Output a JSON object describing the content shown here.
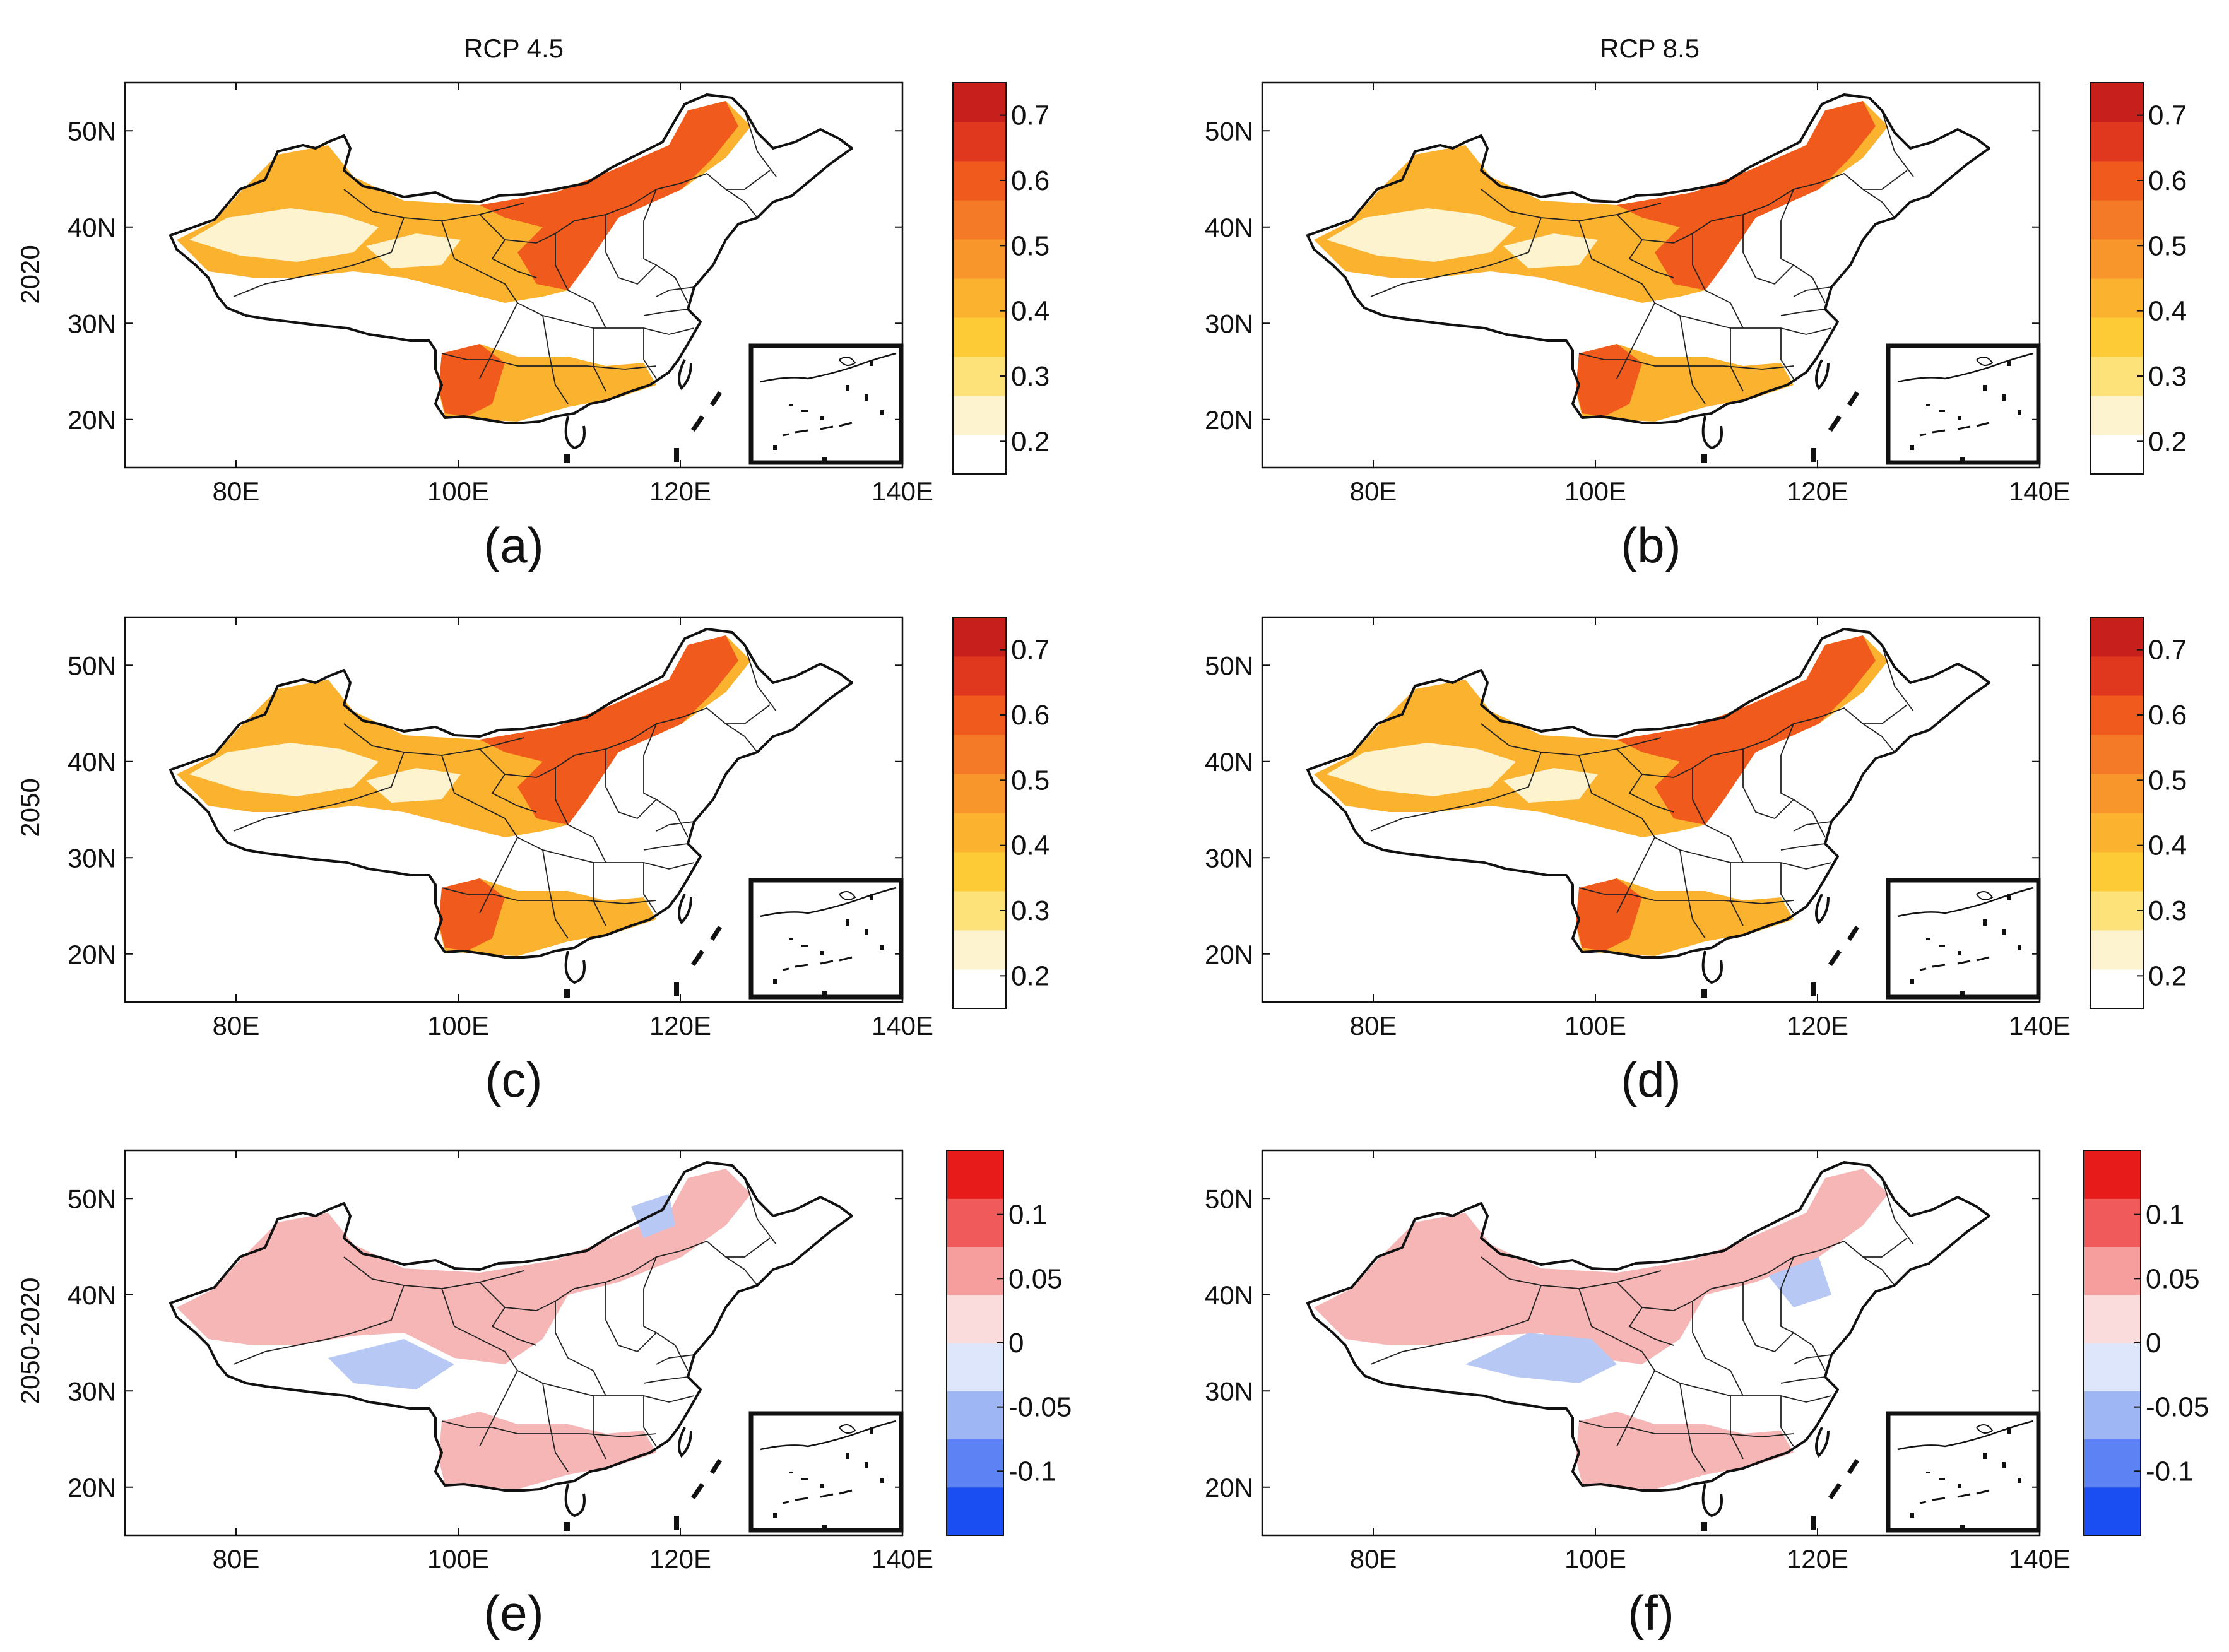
{
  "column_titles": [
    "RCP 4.5",
    "RCP 8.5"
  ],
  "row_labels": [
    "2020",
    "2050",
    "2050-2020"
  ],
  "panel_labels": [
    "(a)",
    "(b)",
    "(c)",
    "(d)",
    "(e)",
    "(f)"
  ],
  "axes": {
    "x_ticks": [
      "80E",
      "100E",
      "120E",
      "140E"
    ],
    "y_ticks": [
      "50N",
      "40N",
      "30N",
      "20N"
    ],
    "lon_range": [
      70,
      140
    ],
    "lat_range": [
      15,
      55
    ]
  },
  "colorbar_value": {
    "tick_labels": [
      "0.7",
      "0.6",
      "0.5",
      "0.4",
      "0.3",
      "0.2"
    ],
    "range": [
      0.15,
      0.75
    ],
    "colors": [
      "#ffffff",
      "#fdf3cf",
      "#fde27a",
      "#fccb35",
      "#fbb22f",
      "#f8962b",
      "#f47a27",
      "#f05a1c",
      "#e0381f",
      "#c71f1c"
    ]
  },
  "colorbar_diff": {
    "tick_labels": [
      "0.1",
      "0.05",
      "0",
      "-0.05",
      "-0.1"
    ],
    "range": [
      -0.15,
      0.15
    ],
    "colors": [
      "#1b4ef2",
      "#5c82f3",
      "#9fb6f5",
      "#dde6fb",
      "#fbdcdc",
      "#f69d9d",
      "#f05a5a",
      "#e81b1b"
    ]
  },
  "colors": {
    "hot": "#f05a1c",
    "warm": "#fbb22f",
    "pale": "#fdf3cf",
    "diff_pos": "#f6b6b6",
    "diff_neg": "#b8c8f5"
  }
}
